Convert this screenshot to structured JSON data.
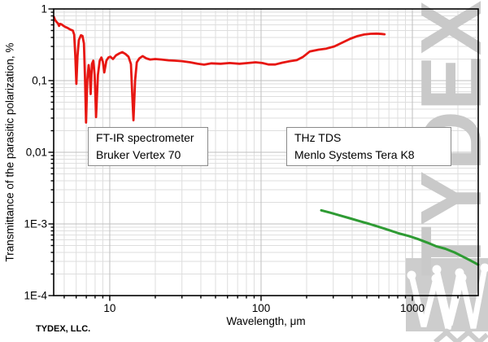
{
  "chart_data": {
    "type": "line",
    "title": "",
    "xlabel": "Wavelength, μm",
    "ylabel": "Transmittance of the parasitic polarization, %",
    "x_scale": "log",
    "y_scale": "log",
    "xlim": [
      4.26,
      2725
    ],
    "ylim": [
      0.0001,
      1
    ],
    "grid": "major+minor",
    "legend_position": "none",
    "x_ticks": [
      {
        "value": 10,
        "label": "10"
      },
      {
        "value": 100,
        "label": "100"
      },
      {
        "value": 1000,
        "label": "1000"
      }
    ],
    "y_ticks": [
      {
        "value": 1,
        "label": "1"
      },
      {
        "value": 0.1,
        "label": "0,1"
      },
      {
        "value": 0.01,
        "label": "0,01"
      },
      {
        "value": 0.001,
        "label": "1E-3"
      },
      {
        "value": 0.0001,
        "label": "1E-4"
      }
    ],
    "series": [
      {
        "name": "FT-IR spectrometer Bruker Vertex 70",
        "color": "#e71712",
        "width": 2.8,
        "points": [
          [
            4.28,
            0.77
          ],
          [
            4.35,
            0.7
          ],
          [
            4.45,
            0.66
          ],
          [
            4.55,
            0.63
          ],
          [
            4.62,
            0.58
          ],
          [
            4.7,
            0.62
          ],
          [
            4.8,
            0.61
          ],
          [
            4.95,
            0.58
          ],
          [
            5.1,
            0.56
          ],
          [
            5.25,
            0.545
          ],
          [
            5.4,
            0.525
          ],
          [
            5.55,
            0.51
          ],
          [
            5.7,
            0.5
          ],
          [
            5.82,
            0.44
          ],
          [
            5.92,
            0.22
          ],
          [
            6.02,
            0.09
          ],
          [
            6.12,
            0.22
          ],
          [
            6.25,
            0.37
          ],
          [
            6.45,
            0.43
          ],
          [
            6.6,
            0.42
          ],
          [
            6.75,
            0.33
          ],
          [
            6.87,
            0.1
          ],
          [
            6.97,
            0.026
          ],
          [
            7.1,
            0.1
          ],
          [
            7.25,
            0.165
          ],
          [
            7.38,
            0.12
          ],
          [
            7.48,
            0.065
          ],
          [
            7.62,
            0.17
          ],
          [
            7.78,
            0.19
          ],
          [
            7.95,
            0.12
          ],
          [
            8.12,
            0.031
          ],
          [
            8.35,
            0.12
          ],
          [
            8.58,
            0.19
          ],
          [
            8.8,
            0.21
          ],
          [
            9.0,
            0.185
          ],
          [
            9.2,
            0.13
          ],
          [
            9.5,
            0.19
          ],
          [
            9.8,
            0.21
          ],
          [
            10.1,
            0.215
          ],
          [
            10.5,
            0.2
          ],
          [
            11.0,
            0.225
          ],
          [
            11.6,
            0.24
          ],
          [
            12.1,
            0.25
          ],
          [
            12.7,
            0.235
          ],
          [
            13.3,
            0.215
          ],
          [
            13.8,
            0.17
          ],
          [
            14.1,
            0.06
          ],
          [
            14.35,
            0.028
          ],
          [
            14.7,
            0.1
          ],
          [
            15.1,
            0.18
          ],
          [
            15.7,
            0.205
          ],
          [
            16.5,
            0.22
          ],
          [
            17.4,
            0.205
          ],
          [
            18.5,
            0.197
          ],
          [
            20,
            0.2
          ],
          [
            22,
            0.197
          ],
          [
            24.5,
            0.192
          ],
          [
            27,
            0.19
          ],
          [
            30,
            0.187
          ],
          [
            34,
            0.18
          ],
          [
            38,
            0.172
          ],
          [
            42,
            0.167
          ],
          [
            47,
            0.174
          ],
          [
            54,
            0.172
          ],
          [
            62,
            0.176
          ],
          [
            72,
            0.172
          ],
          [
            82,
            0.176
          ],
          [
            92,
            0.18
          ],
          [
            102,
            0.176
          ],
          [
            112,
            0.168
          ],
          [
            124,
            0.168
          ],
          [
            138,
            0.178
          ],
          [
            155,
            0.187
          ],
          [
            172,
            0.193
          ],
          [
            190,
            0.215
          ],
          [
            210,
            0.255
          ],
          [
            240,
            0.27
          ],
          [
            270,
            0.28
          ],
          [
            305,
            0.3
          ],
          [
            345,
            0.34
          ],
          [
            390,
            0.385
          ],
          [
            435,
            0.42
          ],
          [
            480,
            0.44
          ],
          [
            530,
            0.45
          ],
          [
            580,
            0.452
          ],
          [
            625,
            0.448
          ],
          [
            655,
            0.443
          ]
        ]
      },
      {
        "name": "THz TDS Menlo Systems Tera K8",
        "color": "#2e9b33",
        "width": 3,
        "points": [
          [
            250,
            0.00155
          ],
          [
            285,
            0.00144
          ],
          [
            330,
            0.00132
          ],
          [
            385,
            0.0012
          ],
          [
            450,
            0.00109
          ],
          [
            520,
            0.001
          ],
          [
            600,
            0.00091
          ],
          [
            700,
            0.00082
          ],
          [
            810,
            0.00074
          ],
          [
            940,
            0.00068
          ],
          [
            1080,
            0.00062
          ],
          [
            1250,
            0.00055
          ],
          [
            1430,
            0.00049
          ],
          [
            1650,
            0.00045
          ],
          [
            1900,
            0.0004
          ],
          [
            2150,
            0.00035
          ],
          [
            2450,
            0.000305
          ],
          [
            2720,
            0.00027
          ]
        ]
      }
    ],
    "annotations": [
      {
        "lines": [
          "FT-IR spectrometer",
          "Bruker Vertex 70"
        ]
      },
      {
        "lines": [
          "THz TDS",
          "Menlo Systems Tera K8"
        ]
      }
    ]
  },
  "watermark": {
    "text": "TYDEX",
    "color": "#c9c9c9"
  },
  "footer": {
    "credit": "TYDEX, LLC."
  },
  "colors": {
    "ftir_curve": "#e71712",
    "thz_curve": "#2e9b33",
    "grid_major": "#bfbfbf",
    "grid_minor": "#dedede",
    "watermark_gray": "#cdcdcd",
    "frame": "#000000"
  }
}
